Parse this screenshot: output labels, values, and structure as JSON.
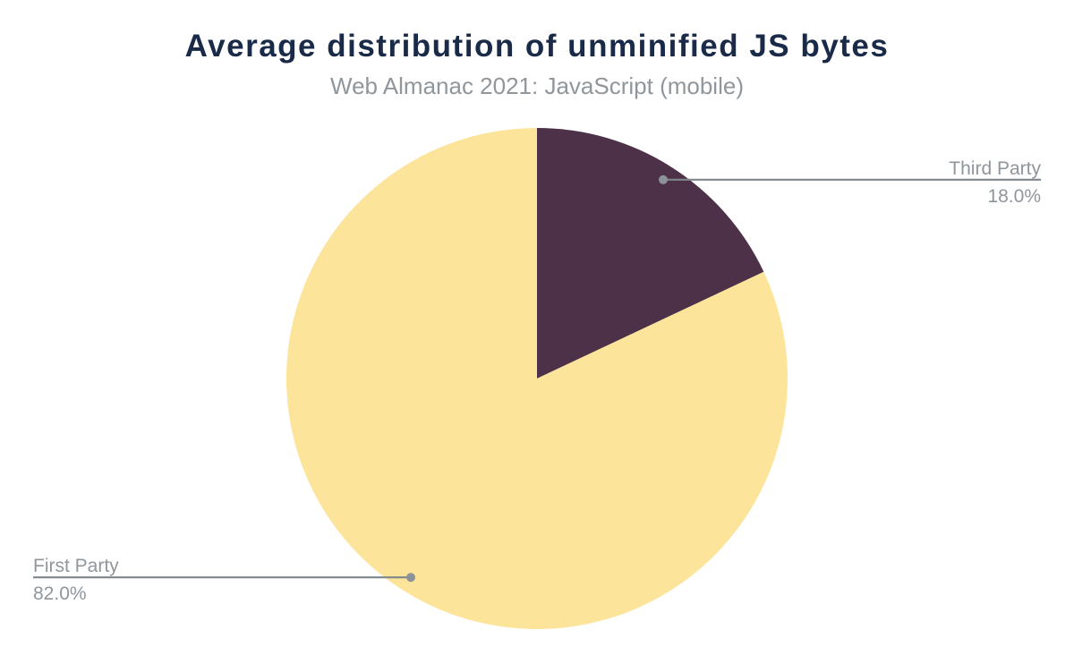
{
  "chart_data": {
    "type": "pie",
    "title": "Average distribution of unminified JS bytes",
    "subtitle": "Web Almanac 2021: JavaScript (mobile)",
    "unit": "%",
    "direction": "clockwise",
    "start_angle_deg": 0,
    "legend_position": "none",
    "grid": false,
    "slices": [
      {
        "label": "Third Party",
        "value": 18.0,
        "display": "18.0%",
        "color": "#4d3148"
      },
      {
        "label": "First Party",
        "value": 82.0,
        "display": "82.0%",
        "color": "#fce49a"
      }
    ],
    "colors": {
      "title": "#1a2b49",
      "subtitle": "#8f969c",
      "label_text": "#8f969c",
      "leader_line": "#7f868c",
      "leader_dot": "#8d9298",
      "background": "#ffffff"
    }
  }
}
